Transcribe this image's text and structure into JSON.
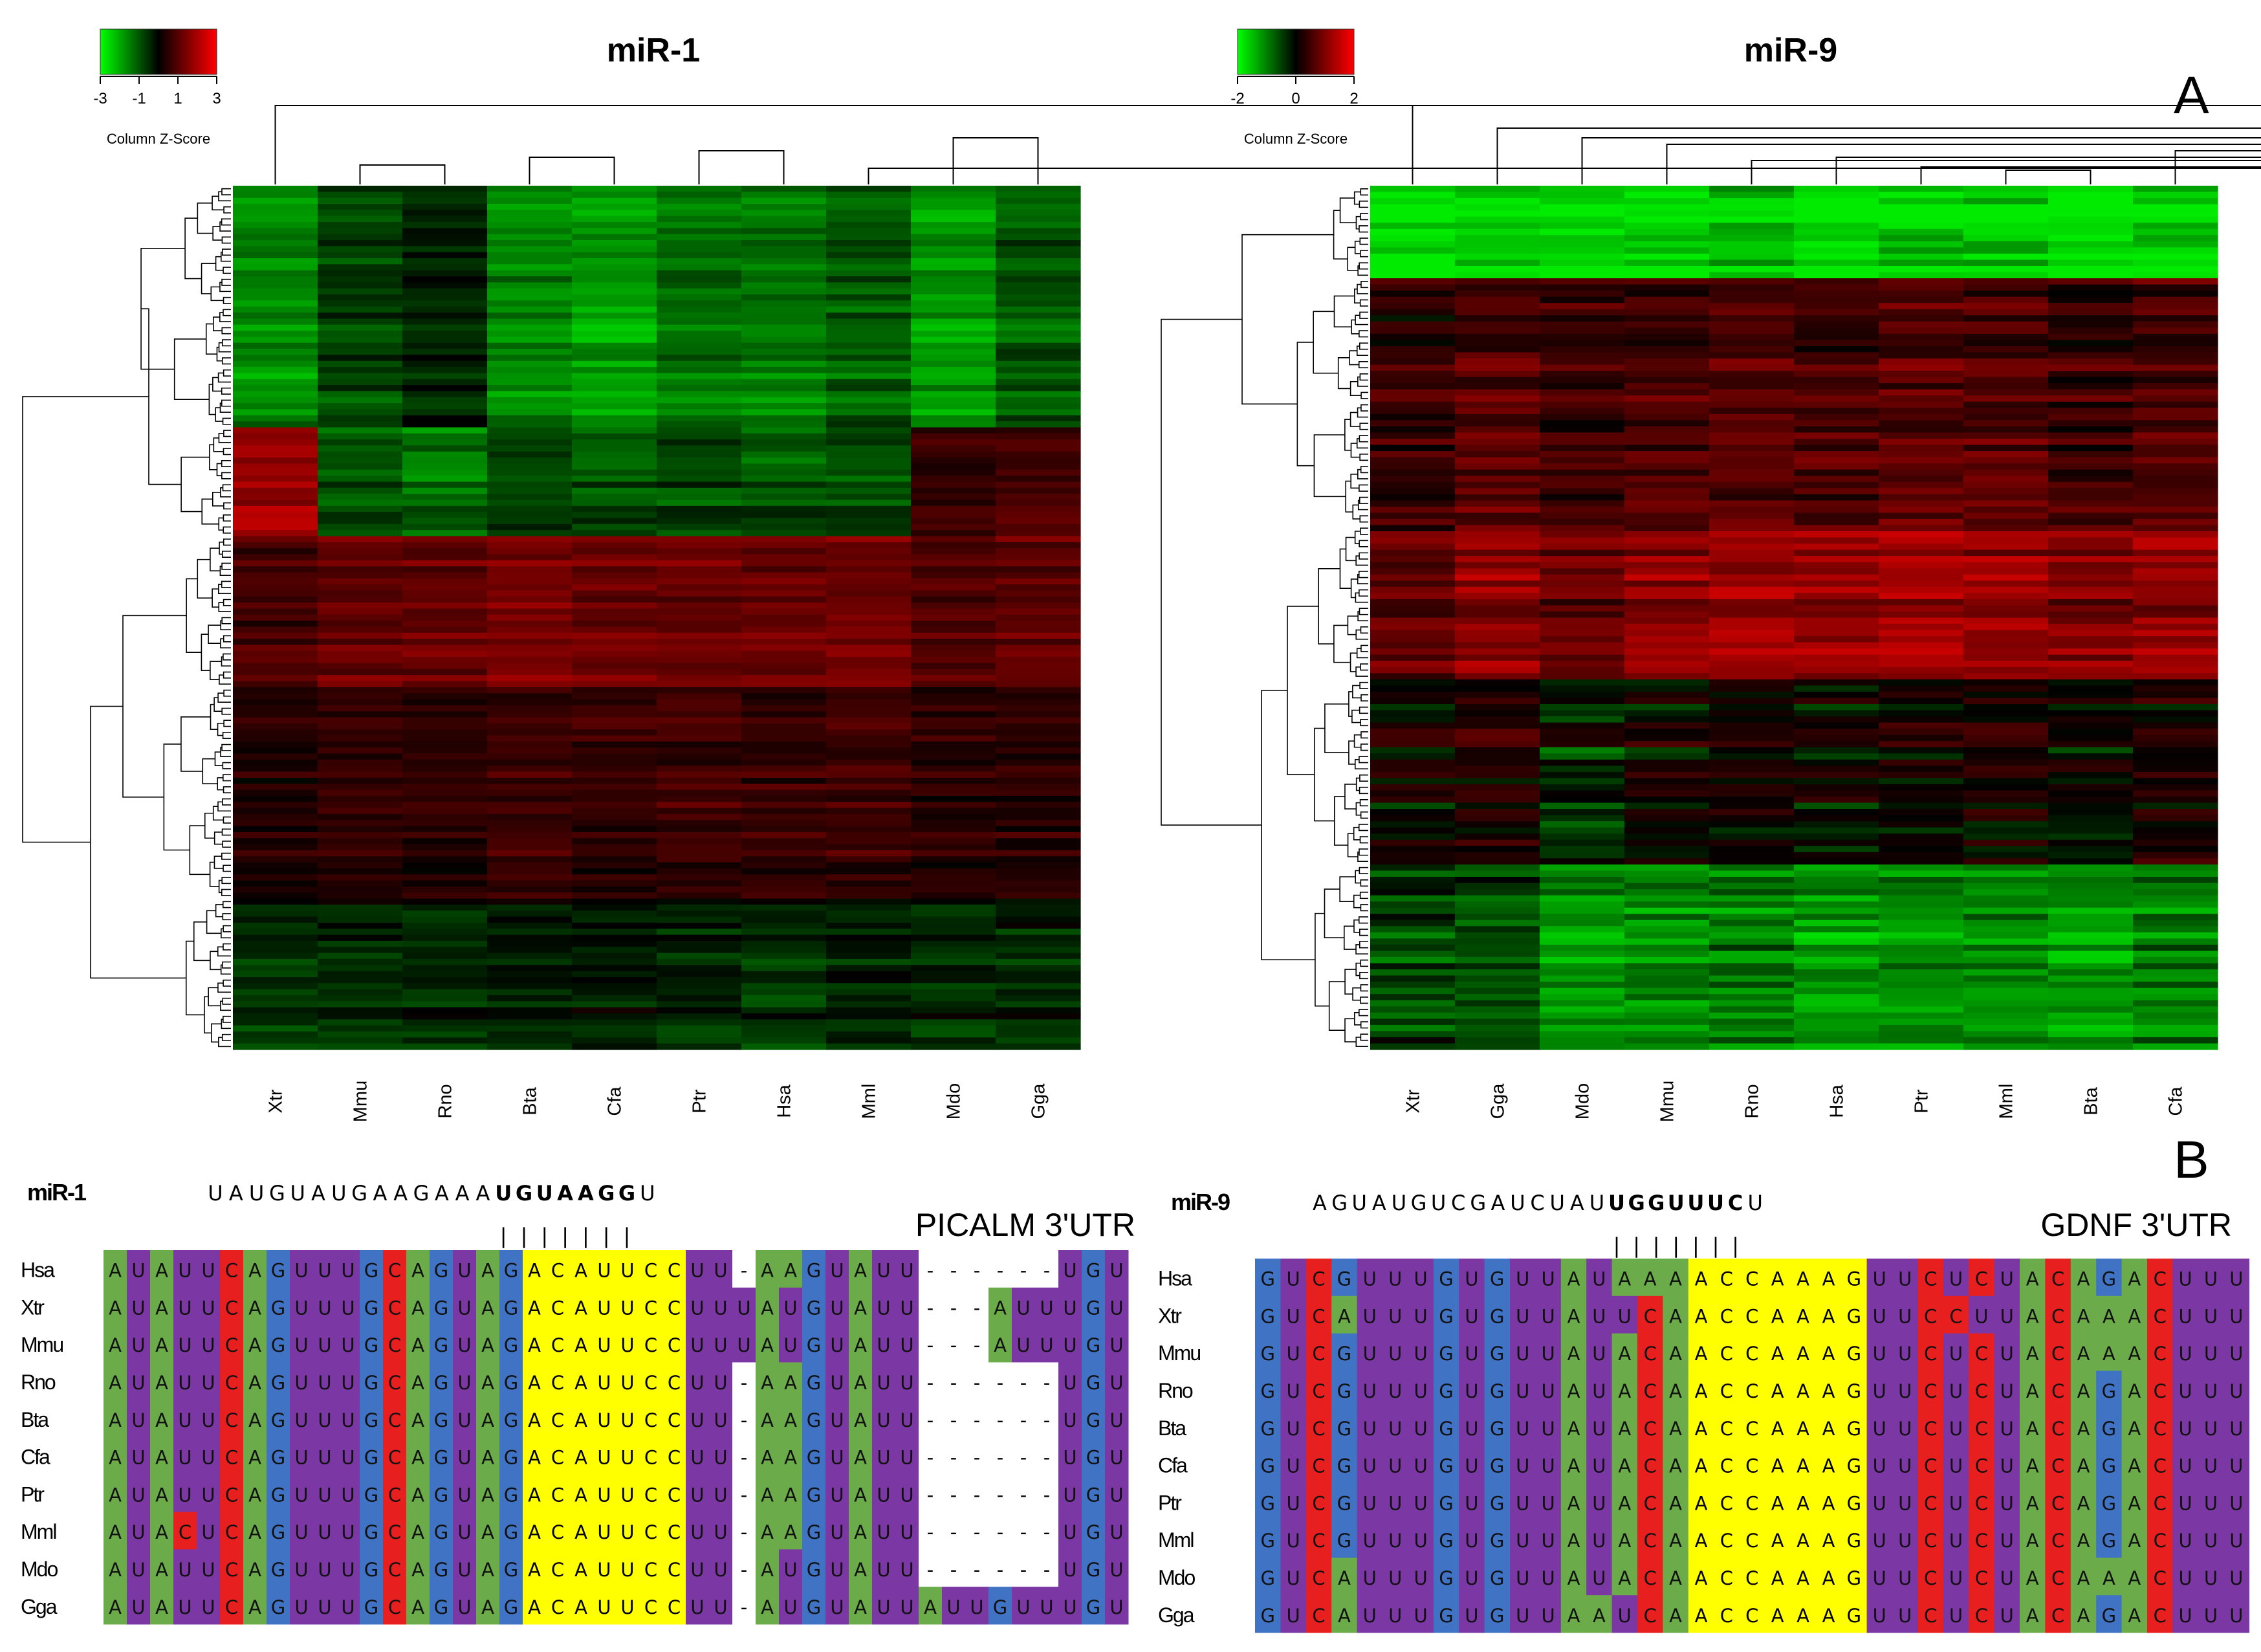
{
  "panel_labels": {
    "a": "A",
    "b": "B"
  },
  "legend_title": "Column Z-Score",
  "colors": {
    "green": "#00ff00",
    "black": "#000000",
    "red": "#ff0000"
  },
  "chart_data": [
    {
      "type": "heatmap",
      "title": "miR-1",
      "legend_ticks": [
        "-3",
        "-1",
        "1",
        "3"
      ],
      "legend_range": [
        -3,
        3
      ],
      "columns": [
        "Xtr",
        "Mmu",
        "Rno",
        "Bta",
        "Cfa",
        "Ptr",
        "Hsa",
        "Mml",
        "Mdo",
        "Gga"
      ],
      "row_blocks": [
        {
          "rows": 40,
          "values": [
            -1.8,
            -0.8,
            -0.5,
            -1.9,
            -2.0,
            -1.5,
            -1.4,
            -1.3,
            -2.0,
            -1.2
          ]
        },
        {
          "rows": 18,
          "values": [
            2.2,
            -1.0,
            -1.5,
            -1.0,
            -1.1,
            -1.0,
            -1.0,
            -1.1,
            0.8,
            1.0
          ]
        },
        {
          "rows": 25,
          "values": [
            1.0,
            1.6,
            1.5,
            1.7,
            1.6,
            1.6,
            1.7,
            1.6,
            1.2,
            1.3
          ]
        },
        {
          "rows": 35,
          "values": [
            0.4,
            0.8,
            0.6,
            0.8,
            0.7,
            0.9,
            0.9,
            0.8,
            0.6,
            0.5
          ]
        },
        {
          "rows": 25,
          "values": [
            -0.6,
            -0.4,
            -0.5,
            -0.4,
            -0.3,
            -0.4,
            -0.5,
            -0.4,
            -0.5,
            -0.5
          ]
        }
      ]
    },
    {
      "type": "heatmap",
      "title": "miR-9",
      "legend_ticks": [
        "-2",
        "0",
        "2"
      ],
      "legend_range": [
        -2,
        2
      ],
      "columns": [
        "Xtr",
        "Gga",
        "Mdo",
        "Mmu",
        "Rno",
        "Hsa",
        "Ptr",
        "Mml",
        "Bta",
        "Cfa"
      ],
      "row_blocks": [
        {
          "rows": 15,
          "values": [
            -2.0,
            -2.0,
            -1.8,
            -1.8,
            -1.9,
            -2.0,
            -1.9,
            -1.8,
            -1.9,
            -1.9
          ]
        },
        {
          "rows": 40,
          "values": [
            0.5,
            0.7,
            0.6,
            0.7,
            0.6,
            0.7,
            0.7,
            0.7,
            0.6,
            0.6
          ]
        },
        {
          "rows": 25,
          "values": [
            0.8,
            1.2,
            1.1,
            1.3,
            1.3,
            1.4,
            1.4,
            1.3,
            1.3,
            1.3
          ]
        },
        {
          "rows": 30,
          "values": [
            0.1,
            0.2,
            -0.2,
            0.1,
            0.0,
            0.1,
            0.0,
            0.1,
            0.1,
            0.1
          ]
        },
        {
          "rows": 30,
          "values": [
            -0.5,
            -0.7,
            -1.0,
            -1.1,
            -1.1,
            -1.2,
            -1.2,
            -1.2,
            -1.1,
            -1.1
          ]
        }
      ]
    }
  ],
  "alignments": [
    {
      "mirna": "miR-1",
      "mirna_seq": [
        "U",
        "A",
        "U",
        "G",
        "U",
        "A",
        "U",
        "G",
        "A",
        "A",
        "G",
        "A",
        "A",
        "A",
        "U",
        "G",
        "U",
        "A",
        "A",
        "G",
        "G",
        "U"
      ],
      "seed_positions": [
        14,
        15,
        16,
        17,
        18,
        19,
        20
      ],
      "utr_label": "PICALM 3'UTR",
      "species": [
        "Hsa",
        "Xtr",
        "Mmu",
        "Rno",
        "Bta",
        "Cfa",
        "Ptr",
        "Mml",
        "Mdo",
        "Gga"
      ],
      "seqs": [
        "AUAUUCAGUUUGCAGUAGACAUUCCUU-AAGUAUU------UGU",
        "AUAUUCAGUUUGCAGUAGACAUUCCUUUAUGUAUU---AUUUGU",
        "AUAUUCAGUUUGCAGUAGACAUUCCUUUAUGUAUU---AUUUGU",
        "AUAUUCAGUUUGCAGUAGACAUUCCUU-AAGUAUU------UGU",
        "AUAUUCAGUUUGCAGUAGACAUUCCUU-AAGUAUU------UGU",
        "AUAUUCAGUUUGCAGUAGACAUUCCUU-AAGUAUU------UGU",
        "AUAUUCAGUUUGCAGUAGACAUUCCUU-AAGUAUU------UGU",
        "AUACUCAGUUUGCAGUAGACAUUCCUU-AAGUAUU------UGU",
        "AUAUUCAGUUUGCAGUAGACAUUCCUU-AUGUAUU------UGU",
        "AUAUUCAGUUUGCAGUAGACAUUCCUU-AUGUAUUAUUGUUUGU"
      ]
    },
    {
      "mirna": "miR-9",
      "mirna_seq": [
        "A",
        "G",
        "U",
        "A",
        "U",
        "G",
        "U",
        "C",
        "G",
        "A",
        "U",
        "C",
        "U",
        "A",
        "U",
        "U",
        "G",
        "G",
        "U",
        "U",
        "U",
        "C",
        "U"
      ],
      "seed_positions": [
        15,
        16,
        17,
        18,
        19,
        20,
        21
      ],
      "utr_label": "GDNF 3'UTR",
      "species": [
        "Hsa",
        "Xtr",
        "Mmu",
        "Rno",
        "Bta",
        "Cfa",
        "Ptr",
        "Mml",
        "Mdo",
        "Gga"
      ],
      "seqs": [
        "GUCGUUUGUGUUAUAAAACCAAAGUUCUCUACAGACUUU",
        "GUCAUUUGUGUUAUUCAACCAAAGUUCCUUACAAACUUU",
        "GUCGUUUGUGUUAUACAACCAAAGUUCUCUACAAACUUU",
        "GUCGUUUGUGUUAUACAACCAAAGUUCUCUACAGACUUU",
        "GUCGUUUGUGUUAUACAACCAAAGUUCUCUACAGACUUU",
        "GUCGUUUGUGUUAUACAACCAAAGUUCUCUACAGACUUU",
        "GUCGUUUGUGUUAUACAACCAAAGUUCUCUACAGACUUU",
        "GUCGUUUGUGUUAUACAACCAAAGUUCUCUACAGACUUU",
        "GUCAUUUGUGUUAUACAACCAAAGUUCUCUACAAACUUU",
        "GUCAUUUGUGUUAAUCAACCAAAGUUCUCUACAGACUUU"
      ]
    }
  ]
}
